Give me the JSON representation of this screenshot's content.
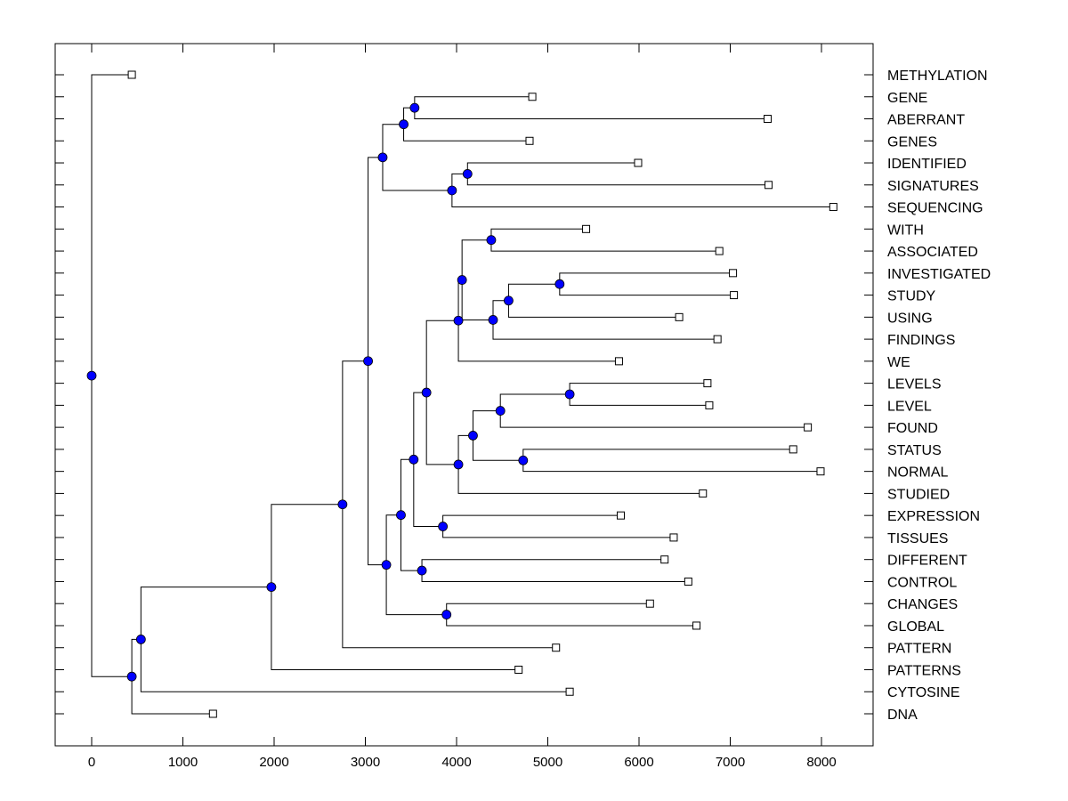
{
  "chart_data": {
    "type": "dendrogram",
    "title": "",
    "xlabel": "",
    "ylabel": "",
    "xlim": [
      -400,
      8550
    ],
    "x_ticks": [
      0,
      1000,
      2000,
      3000,
      4000,
      5000,
      6000,
      7000,
      8000
    ],
    "x_tick_labels": [
      "0",
      "1000",
      "2000",
      "3000",
      "4000",
      "5000",
      "6000",
      "7000",
      "8000"
    ],
    "grid": false,
    "node_color": "#0000ff",
    "line_color": "#000000",
    "leaves": [
      {
        "label": "METHYLATION",
        "value": 440
      },
      {
        "label": "GENE",
        "value": 4830
      },
      {
        "label": "ABERRANT",
        "value": 7410
      },
      {
        "label": "GENES",
        "value": 4800
      },
      {
        "label": "IDENTIFIED",
        "value": 5990
      },
      {
        "label": "SIGNATURES",
        "value": 7420
      },
      {
        "label": "SEQUENCING",
        "value": 8130
      },
      {
        "label": "WITH",
        "value": 5420
      },
      {
        "label": "ASSOCIATED",
        "value": 6880
      },
      {
        "label": "INVESTIGATED",
        "value": 7030
      },
      {
        "label": "STUDY",
        "value": 7040
      },
      {
        "label": "USING",
        "value": 6440
      },
      {
        "label": "FINDINGS",
        "value": 6860
      },
      {
        "label": "WE",
        "value": 5780
      },
      {
        "label": "LEVELS",
        "value": 6750
      },
      {
        "label": "LEVEL",
        "value": 6770
      },
      {
        "label": "FOUND",
        "value": 7850
      },
      {
        "label": "STATUS",
        "value": 7690
      },
      {
        "label": "NORMAL",
        "value": 7990
      },
      {
        "label": "STUDIED",
        "value": 6700
      },
      {
        "label": "EXPRESSION",
        "value": 5800
      },
      {
        "label": "TISSUES",
        "value": 6380
      },
      {
        "label": "DIFFERENT",
        "value": 6280
      },
      {
        "label": "CONTROL",
        "value": 6540
      },
      {
        "label": "CHANGES",
        "value": 6120
      },
      {
        "label": "GLOBAL",
        "value": 6630
      },
      {
        "label": "PATTERN",
        "value": 5090
      },
      {
        "label": "PATTERNS",
        "value": 4680
      },
      {
        "label": "CYTOSINE",
        "value": 5240
      },
      {
        "label": "DNA",
        "value": 1330
      }
    ],
    "nodes": [
      {
        "id": "root",
        "value": 0,
        "children": [
          "L:METHYLATION",
          "A"
        ]
      },
      {
        "id": "A",
        "value": 440,
        "children": [
          "B",
          "L:DNA"
        ]
      },
      {
        "id": "B",
        "value": 540,
        "children": [
          "C",
          "L:CYTOSINE"
        ]
      },
      {
        "id": "C",
        "value": 1970,
        "children": [
          "D",
          "L:PATTERNS"
        ]
      },
      {
        "id": "D",
        "value": 2750,
        "children": [
          "E",
          "L:PATTERN"
        ]
      },
      {
        "id": "E",
        "value": 3030,
        "children": [
          "F",
          "G"
        ]
      },
      {
        "id": "F",
        "value": 3190,
        "children": [
          "H",
          "I"
        ]
      },
      {
        "id": "H",
        "value": 3420,
        "children": [
          "J",
          "L:GENES"
        ]
      },
      {
        "id": "J",
        "value": 3540,
        "children": [
          "L:GENE",
          "L:ABERRANT"
        ]
      },
      {
        "id": "I",
        "value": 3950,
        "children": [
          "K",
          "L:SEQUENCING"
        ]
      },
      {
        "id": "K",
        "value": 4120,
        "children": [
          "L:IDENTIFIED",
          "L:SIGNATURES"
        ]
      },
      {
        "id": "G",
        "value": 3230,
        "children": [
          "Lx",
          "M"
        ]
      },
      {
        "id": "M",
        "value": 3890,
        "children": [
          "L:CHANGES",
          "L:GLOBAL"
        ]
      },
      {
        "id": "Lx",
        "value": 3390,
        "children": [
          "N",
          "O"
        ]
      },
      {
        "id": "O",
        "value": 3620,
        "children": [
          "L:DIFFERENT",
          "L:CONTROL"
        ]
      },
      {
        "id": "N",
        "value": 3530,
        "children": [
          "P",
          "Q"
        ]
      },
      {
        "id": "Q",
        "value": 3850,
        "children": [
          "L:EXPRESSION",
          "L:TISSUES"
        ]
      },
      {
        "id": "P",
        "value": 3670,
        "children": [
          "R",
          "S"
        ]
      },
      {
        "id": "R",
        "value": 4020,
        "children": [
          "T",
          "L:WE"
        ]
      },
      {
        "id": "T",
        "value": 4060,
        "children": [
          "U",
          "V"
        ]
      },
      {
        "id": "U",
        "value": 4380,
        "children": [
          "L:WITH",
          "L:ASSOCIATED"
        ]
      },
      {
        "id": "V",
        "value": 4400,
        "children": [
          "W",
          "L:FINDINGS"
        ]
      },
      {
        "id": "W",
        "value": 4570,
        "children": [
          "X",
          "L:USING"
        ]
      },
      {
        "id": "X",
        "value": 5130,
        "children": [
          "L:INVESTIGATED",
          "L:STUDY"
        ]
      },
      {
        "id": "S",
        "value": 4020,
        "children": [
          "Y",
          "L:STUDIED"
        ]
      },
      {
        "id": "Y",
        "value": 4180,
        "children": [
          "Z",
          "AA"
        ]
      },
      {
        "id": "Z",
        "value": 4480,
        "children": [
          "AB",
          "L:FOUND"
        ]
      },
      {
        "id": "AB",
        "value": 5240,
        "children": [
          "L:LEVELS",
          "L:LEVEL"
        ]
      },
      {
        "id": "AA",
        "value": 4730,
        "children": [
          "L:STATUS",
          "L:NORMAL"
        ]
      }
    ]
  }
}
